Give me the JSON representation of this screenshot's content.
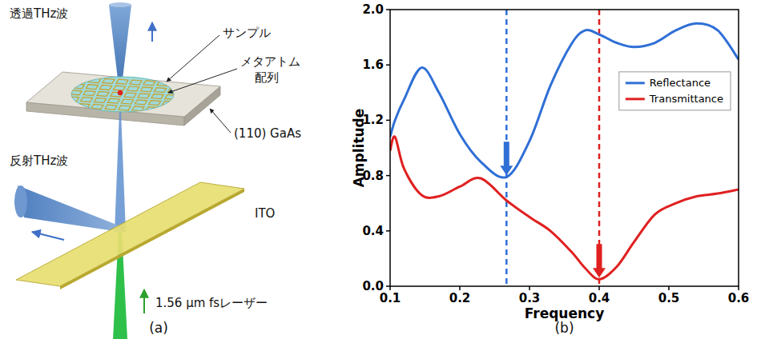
{
  "diagram": {
    "transmitted": "透過THz波",
    "sample": "サンプル",
    "metaatom": [
      "メタアトム",
      "配列"
    ],
    "substrate": "(110) GaAs",
    "reflected": "反射THz波",
    "ito": "ITO",
    "laser": "1.56 μm fsレーザー",
    "panel_label": "(a)"
  },
  "chart_data": {
    "type": "line",
    "panel_label": "(b)",
    "x_label": "Frequency",
    "y_label": "Amplitude",
    "x": [
      0.1,
      0.107,
      0.12,
      0.145,
      0.17,
      0.2,
      0.23,
      0.267,
      0.3,
      0.33,
      0.36,
      0.38,
      0.4,
      0.425,
      0.45,
      0.48,
      0.51,
      0.54,
      0.57,
      0.6
    ],
    "series": [
      {
        "name": "Reflectance",
        "color": "#2f6fd6",
        "values": [
          1.08,
          1.2,
          1.35,
          1.58,
          1.4,
          1.1,
          0.9,
          0.79,
          1.05,
          1.45,
          1.75,
          1.85,
          1.82,
          1.76,
          1.73,
          1.76,
          1.85,
          1.9,
          1.85,
          1.64
        ]
      },
      {
        "name": "Transmittance",
        "color": "#e02020",
        "values": [
          0.98,
          1.08,
          0.85,
          0.66,
          0.65,
          0.72,
          0.78,
          0.62,
          0.5,
          0.4,
          0.25,
          0.13,
          0.05,
          0.14,
          0.32,
          0.52,
          0.6,
          0.65,
          0.67,
          0.7
        ]
      }
    ],
    "xlim": [
      0.1,
      0.6
    ],
    "xticks": [
      0.1,
      0.2,
      0.3,
      0.4,
      0.5,
      0.6
    ],
    "ylim": [
      0,
      2
    ],
    "yticks": [
      {
        "value": 0,
        "label": "0.0"
      },
      0.4,
      0.8,
      1.2,
      1.6,
      {
        "value": 2,
        "label": "2.0"
      }
    ],
    "legend": "right",
    "grid": false,
    "markers": [
      {
        "x": 0.267,
        "y": 0.79,
        "color": "#2f6fd6"
      },
      {
        "x": 0.4,
        "y": 0.05,
        "color": "#e02020"
      }
    ]
  }
}
